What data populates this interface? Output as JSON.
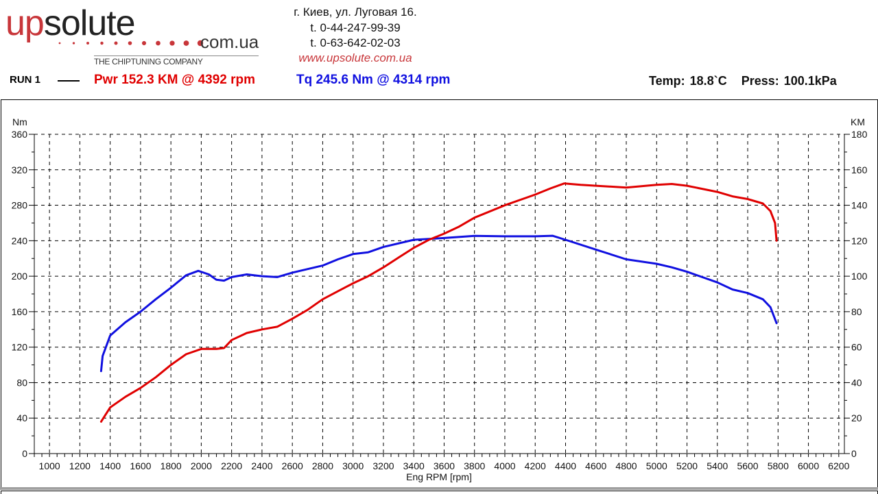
{
  "header": {
    "logo_text_1": "up",
    "logo_text_2": "solute",
    "logo_domain": "com.ua",
    "logo_tagline": "THE CHIPTUNING COMPANY",
    "address": "г. Киев, ул. Луговая 16.",
    "phone1": "t. 0-44-247-99-39",
    "phone2": "t. 0-63-642-02-03",
    "website": "www.upsolute.com.ua",
    "brand_color": "#c8363a"
  },
  "run": {
    "label": "RUN 1",
    "power_summary": "Pwr  152.3 KM @ 4392 rpm",
    "torque_summary": "Tq 245.6 Nm @ 4314 rpm",
    "conditions": "Temp: 18.8`C   Press: 100.1kPa"
  },
  "chart_data": {
    "type": "line",
    "xlabel": "Eng RPM [rpm]",
    "ylabel_left": "Nm",
    "ylabel_right": "KM",
    "xlim": [
      900,
      6237
    ],
    "ylim_left": [
      0,
      360
    ],
    "ylim_right": [
      0,
      180
    ],
    "x_ticks": [
      1000,
      1200,
      1400,
      1600,
      1800,
      2000,
      2200,
      2400,
      2600,
      2800,
      3000,
      3200,
      3400,
      3600,
      3800,
      4000,
      4200,
      4400,
      4600,
      4800,
      5000,
      5200,
      5400,
      5600,
      5800,
      6000,
      6200
    ],
    "y_ticks_left": [
      0,
      40,
      80,
      120,
      160,
      200,
      240,
      280,
      320,
      360
    ],
    "y_ticks_right": [
      0,
      20,
      40,
      60,
      80,
      100,
      120,
      140,
      160,
      180
    ],
    "grid": true,
    "series": [
      {
        "name": "Torque",
        "axis": "left",
        "unit": "Nm",
        "color": "#1010e0",
        "x": [
          1340,
          1350,
          1400,
          1500,
          1600,
          1700,
          1800,
          1900,
          1980,
          2050,
          2100,
          2150,
          2200,
          2300,
          2400,
          2500,
          2600,
          2800,
          2900,
          3000,
          3100,
          3200,
          3400,
          3600,
          3800,
          4000,
          4200,
          4314,
          4400,
          4600,
          4800,
          5000,
          5100,
          5200,
          5400,
          5500,
          5600,
          5700,
          5750,
          5790
        ],
        "y": [
          93,
          110,
          133,
          148,
          160,
          174,
          187,
          201,
          206,
          202,
          196,
          195,
          199,
          202,
          200,
          199,
          204,
          212,
          219,
          225,
          227,
          233,
          241,
          243,
          245.5,
          245,
          245,
          245.6,
          241,
          230,
          219,
          214,
          210,
          205,
          193,
          185,
          181,
          174,
          165,
          147
        ]
      },
      {
        "name": "Power",
        "axis": "right",
        "unit": "KM",
        "color": "#e00000",
        "x": [
          1340,
          1400,
          1500,
          1600,
          1700,
          1800,
          1900,
          2000,
          2100,
          2150,
          2200,
          2300,
          2400,
          2500,
          2600,
          2700,
          2800,
          2900,
          3000,
          3100,
          3200,
          3300,
          3400,
          3500,
          3600,
          3700,
          3800,
          4000,
          4200,
          4300,
          4392,
          4500,
          4600,
          4800,
          5000,
          5100,
          5200,
          5400,
          5500,
          5600,
          5700,
          5750,
          5780,
          5790
        ],
        "y": [
          18,
          26,
          32,
          37,
          43,
          50,
          56,
          59,
          59,
          59.5,
          64,
          68,
          70,
          71.5,
          76,
          81,
          87,
          91.5,
          96,
          100,
          105,
          110.5,
          116,
          120.5,
          124,
          128,
          133,
          140,
          146,
          149.5,
          152.3,
          151.5,
          151,
          150,
          151.5,
          152,
          151,
          147.5,
          145,
          143.5,
          141,
          136.7,
          130,
          120
        ]
      }
    ]
  }
}
